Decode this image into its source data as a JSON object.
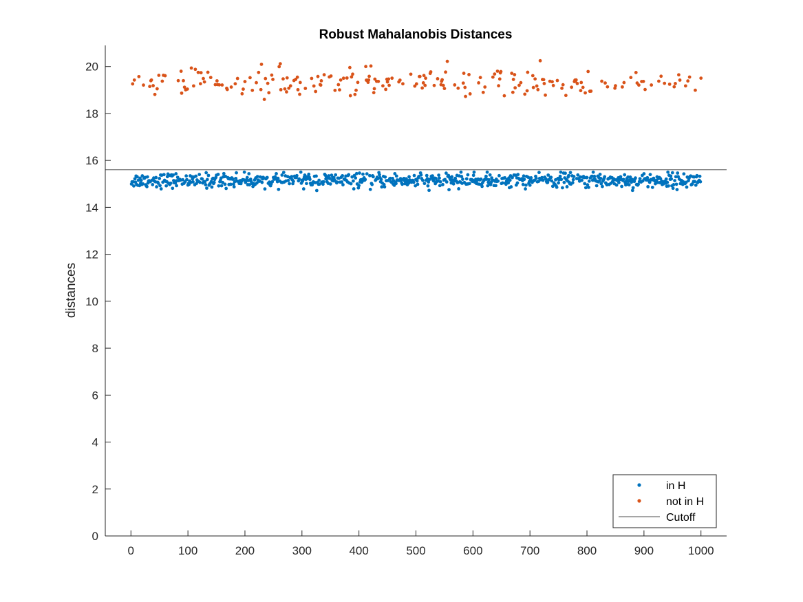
{
  "chart_data": {
    "type": "scatter",
    "title": "Robust Mahalanobis Distances",
    "xlabel": "",
    "ylabel": "distances",
    "xlim": [
      -45,
      1045
    ],
    "ylim": [
      0,
      20.9
    ],
    "xticks": [
      0,
      100,
      200,
      300,
      400,
      500,
      600,
      700,
      800,
      900,
      1000
    ],
    "yticks": [
      0,
      2,
      4,
      6,
      8,
      10,
      12,
      14,
      16,
      18,
      20
    ],
    "grid": false,
    "legend_location": "bottom-right",
    "series": [
      {
        "name": "in H",
        "color": "#0072BD",
        "marker": "dot",
        "approx_count": 750,
        "x_range": [
          1,
          1000
        ],
        "y_center": 15.15,
        "y_spread": 0.15,
        "y_min": 14.45,
        "y_max": 15.5
      },
      {
        "name": "not in H",
        "color": "#D95319",
        "marker": "dot",
        "approx_count": 250,
        "x_range": [
          1,
          1000
        ],
        "y_center": 19.3,
        "y_spread": 0.3,
        "y_min": 18.6,
        "y_max": 20.45
      },
      {
        "name": "Cutoff",
        "color": "#4d4d4d",
        "marker": "line",
        "y": 15.6
      }
    ]
  }
}
